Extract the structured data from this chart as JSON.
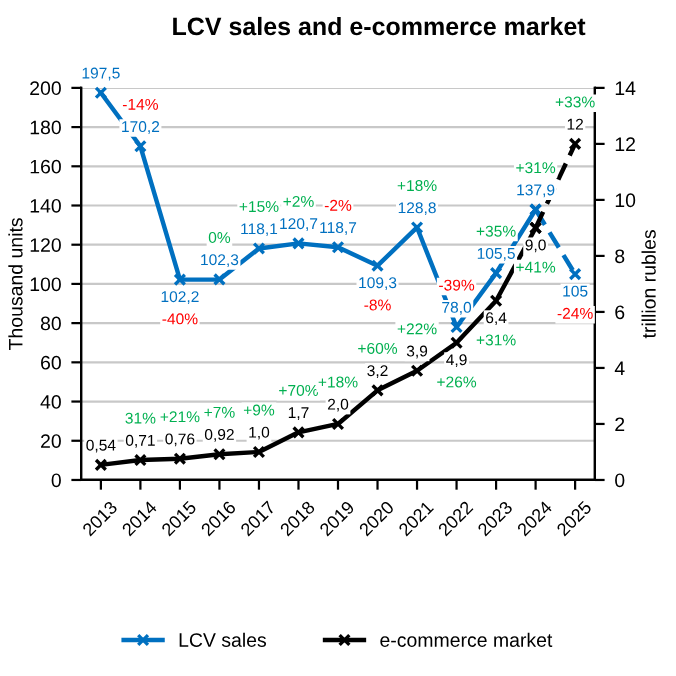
{
  "chart_data": {
    "type": "line",
    "title": "LCV sales and e-commerce market",
    "categories": [
      "2013",
      "2014",
      "2015",
      "2016",
      "2017",
      "2018",
      "2019",
      "2020",
      "2021",
      "2022",
      "2023",
      "2024",
      "2025"
    ],
    "series": [
      {
        "name": "LCV sales",
        "color": "#0070c0",
        "marker": "cross",
        "line_style": "solid",
        "values": [
          197.5,
          170.2,
          102.2,
          102.3,
          118.1,
          120.7,
          118.7,
          109.3,
          128.8,
          78.0,
          105.5,
          137.9,
          null
        ],
        "value_labels": [
          "197,5",
          "170,2",
          "102,2",
          "102,3",
          "118,1",
          "120,7",
          "118,7",
          "109,3",
          "128,8",
          "78,0",
          "105,5",
          "137,9",
          null
        ]
      },
      {
        "color": "#0070c0",
        "marker": "cross",
        "line_style": "dashed",
        "values": [
          null,
          null,
          null,
          null,
          null,
          null,
          null,
          null,
          null,
          null,
          null,
          137.9,
          105
        ],
        "value_labels": [
          null,
          null,
          null,
          null,
          null,
          null,
          null,
          null,
          null,
          null,
          null,
          null,
          "105"
        ]
      },
      {
        "name": "e-commerce market",
        "color": "#000000",
        "marker": "cross",
        "line_style": "solid",
        "axis": "y2",
        "values": [
          0.54,
          0.71,
          0.76,
          0.92,
          1.0,
          1.7,
          2.0,
          3.2,
          3.9,
          4.9,
          6.4,
          9.0,
          null
        ],
        "value_labels": [
          "0,54",
          "0,71",
          "0,76",
          "0,92",
          "1,0",
          "1,7",
          "2,0",
          "3,2",
          "3,9",
          "4,9",
          "6,4",
          "9,0",
          null
        ]
      },
      {
        "color": "#000000",
        "marker": "cross",
        "line_style": "dashed",
        "axis": "y2",
        "values": [
          null,
          null,
          null,
          null,
          null,
          null,
          null,
          null,
          null,
          null,
          null,
          9.0,
          12
        ],
        "value_labels": [
          null,
          null,
          null,
          null,
          null,
          null,
          null,
          null,
          null,
          null,
          null,
          null,
          "12"
        ]
      }
    ],
    "ylabel": "Thousand units",
    "y2label": "trillion rubles",
    "ylim": [
      0,
      200
    ],
    "yticks": [
      0,
      20,
      40,
      60,
      80,
      100,
      120,
      140,
      160,
      180,
      200
    ],
    "y2lim": [
      0,
      14
    ],
    "y2ticks": [
      0,
      2,
      4,
      6,
      8,
      10,
      12,
      14
    ],
    "grid": "y",
    "legend": "bottom",
    "annotations": [
      {
        "text": "-14%",
        "x": "2014",
        "y": 170.2
      },
      {
        "text": "-40%",
        "x": "2015",
        "y": 102.2
      },
      {
        "text": "0%",
        "x": "2016",
        "y": 102.3
      },
      {
        "text": "+15%",
        "x": "2017",
        "y": 118.1
      },
      {
        "text": "+2%",
        "x": "2018",
        "y": 120.7
      },
      {
        "text": "-2%",
        "x": "2019",
        "y": 118.7
      },
      {
        "text": "-8%",
        "x": "2020",
        "y": 109.3
      },
      {
        "text": "+18%",
        "x": "2021",
        "y": 128.8
      },
      {
        "text": "-39%",
        "x": "2022",
        "y": 78.0
      },
      {
        "text": "+35%",
        "x": "2023",
        "y": 105.5
      },
      {
        "text": "+31%",
        "x": "2024",
        "y": 137.9
      },
      {
        "text": "-24%",
        "x": "2025",
        "y": 105
      },
      "31%",
      "+21%",
      "+7%",
      "+9%",
      "+70%",
      "+18%",
      "+60%",
      "+22%",
      "+26%",
      "+31%",
      "+41%",
      "+33%"
    ]
  }
}
